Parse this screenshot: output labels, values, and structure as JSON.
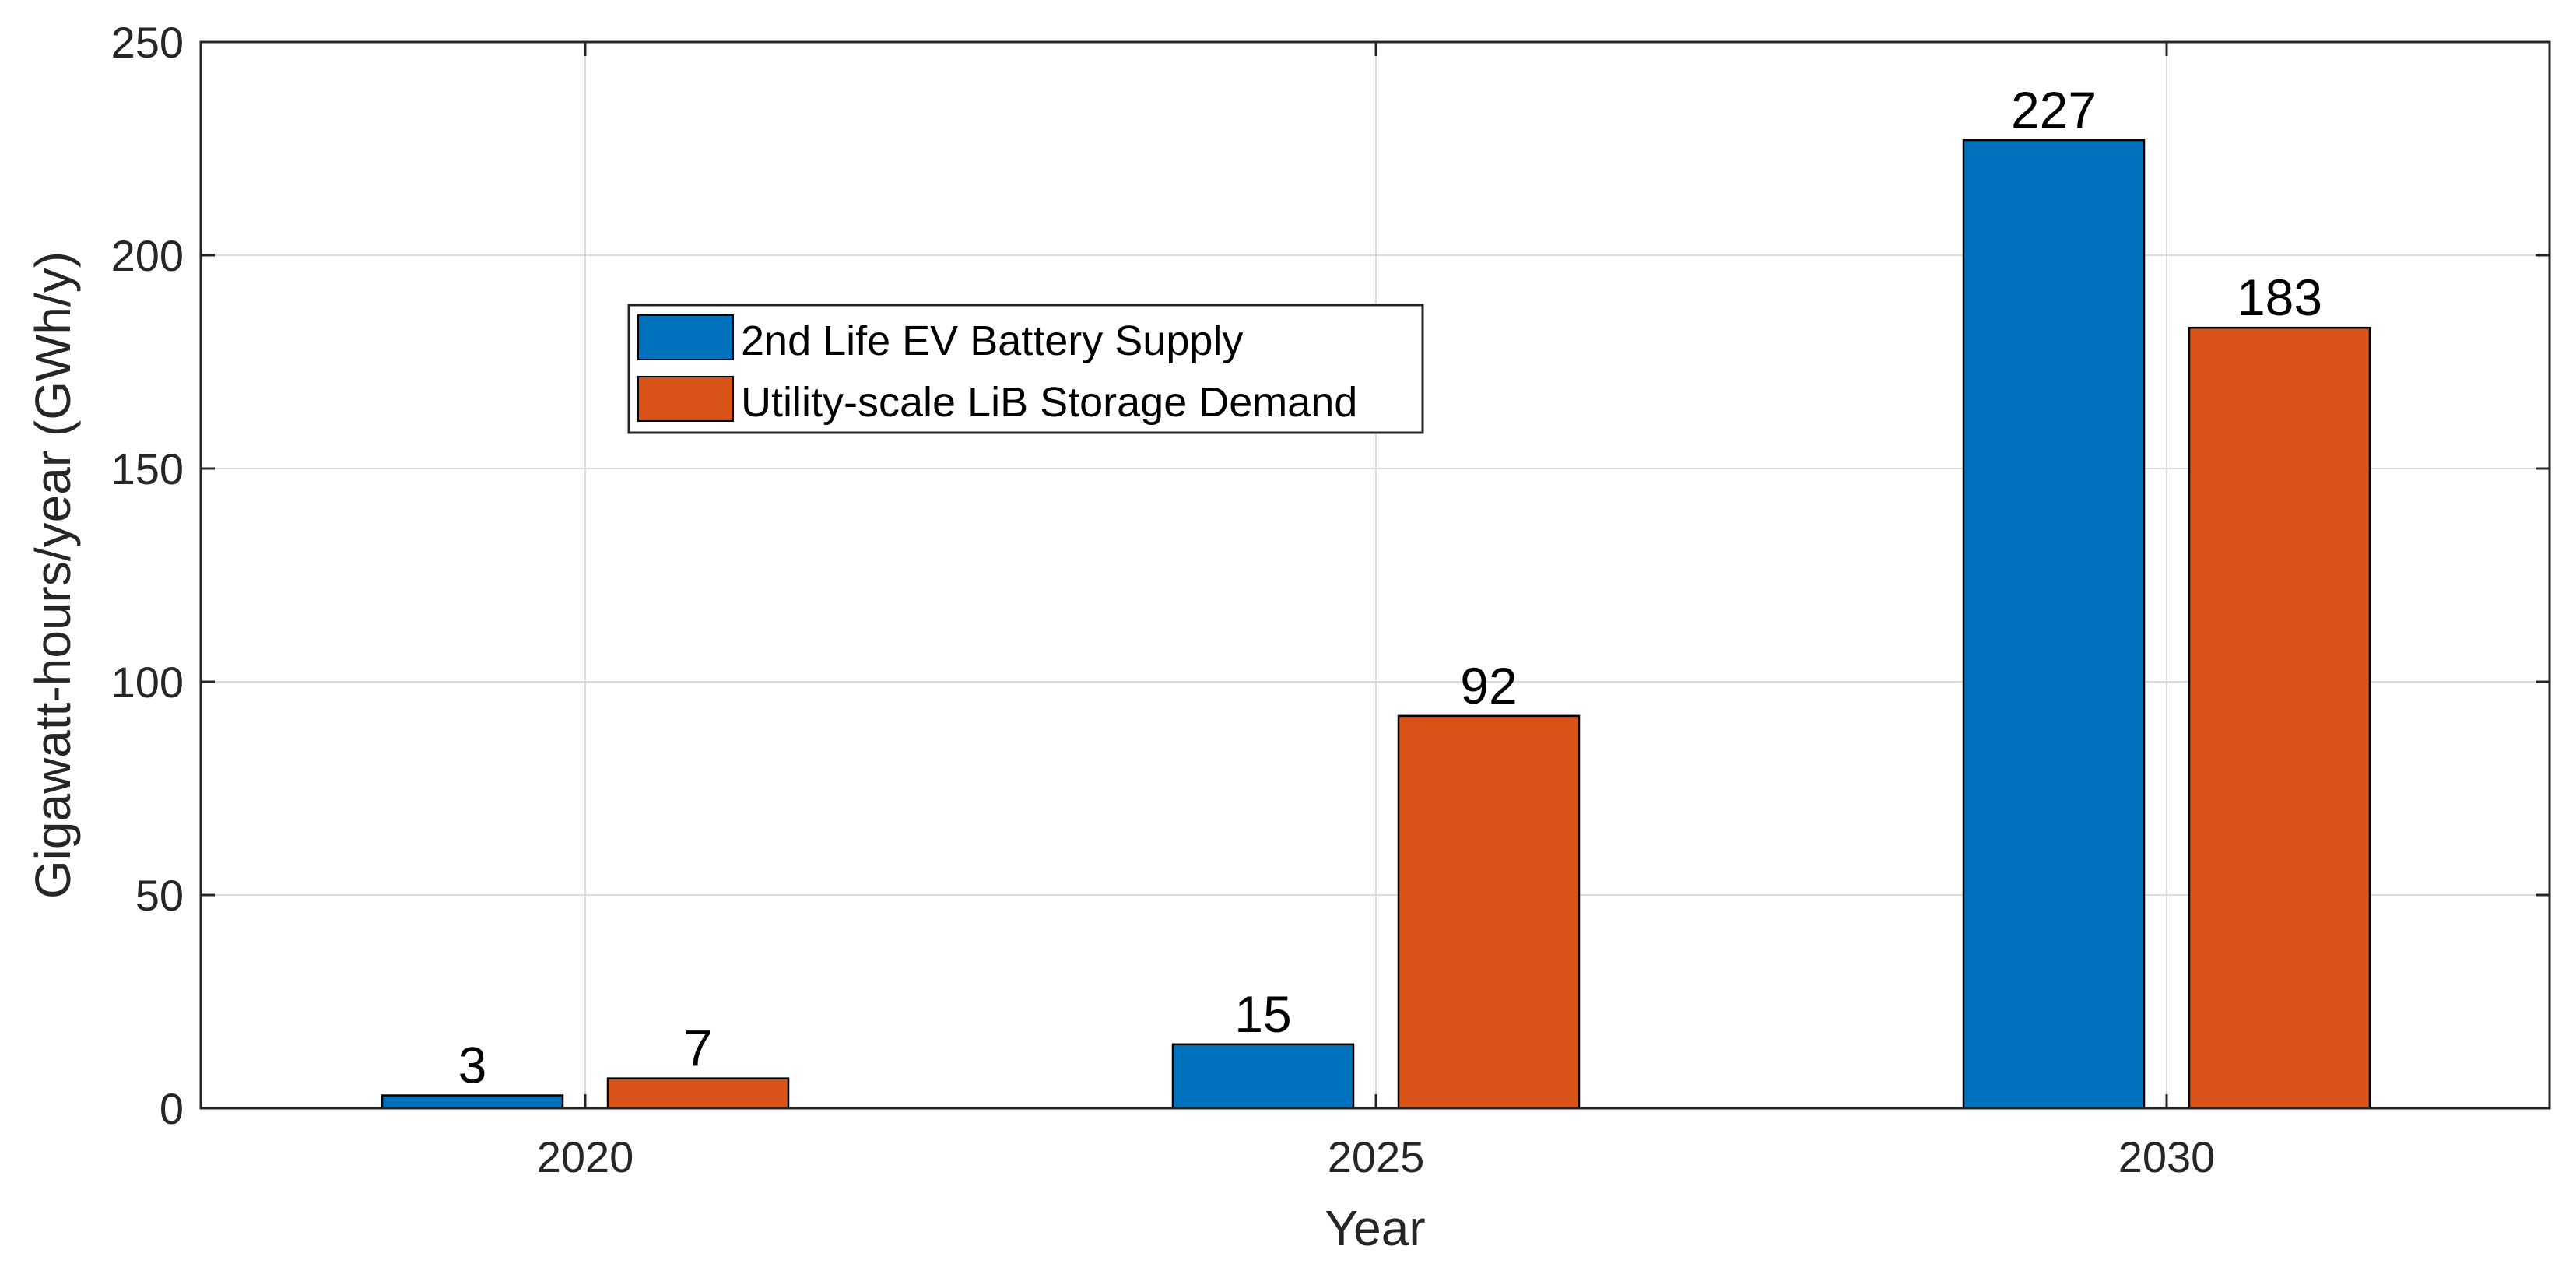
{
  "chart_data": {
    "type": "bar",
    "title": "",
    "xlabel": "Year",
    "ylabel": "Gigawatt-hours/year (GWh/y)",
    "categories": [
      "2020",
      "2025",
      "2030"
    ],
    "ylim": [
      0,
      250
    ],
    "yticks": [
      0,
      50,
      100,
      150,
      200,
      250
    ],
    "grid": true,
    "legend_position": "upper-left-center",
    "series": [
      {
        "name": "2nd Life EV Battery Supply",
        "color": "#0072BD",
        "values": [
          3,
          15,
          227
        ]
      },
      {
        "name": "Utility-scale LiB Storage Demand",
        "color": "#D95319",
        "values": [
          7,
          92,
          183
        ]
      }
    ]
  }
}
